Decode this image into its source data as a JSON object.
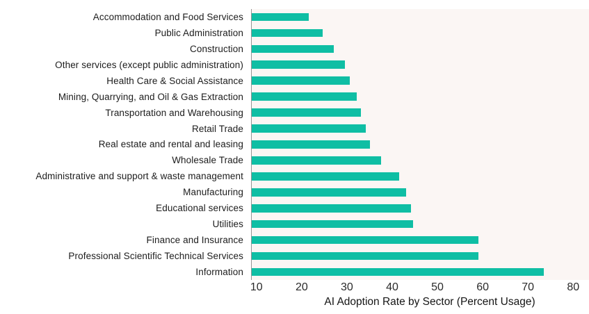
{
  "chart_data": {
    "type": "bar",
    "orientation": "horizontal",
    "title": "",
    "xlabel": "AI Adoption Rate by Sector (Percent Usage)",
    "ylabel": "",
    "categories": [
      "Accommodation and Food Services",
      "Public Administration",
      "Construction",
      "Other services (except public administration)",
      "Health Care & Social Assistance",
      "Mining, Quarrying, and Oil & Gas Extraction",
      "Transportation and Warehousing",
      "Retail Trade",
      "Real estate and rental and leasing",
      "Wholesale Trade",
      "Administrative and support & waste management",
      "Manufacturing",
      "Educational services",
      "Utilities",
      "Finance and Insurance",
      "Professional Scientific Technical Services",
      "Information"
    ],
    "values": [
      21.5,
      24.5,
      27,
      29.5,
      30.5,
      32,
      33,
      34,
      35,
      37.5,
      41.5,
      43,
      44,
      44.5,
      59,
      59,
      73.5
    ],
    "x_ticks": [
      10,
      20,
      30,
      40,
      50,
      60,
      70,
      80
    ],
    "xlim": [
      8.8,
      83.5
    ],
    "grid": false,
    "legend": "none",
    "colors": {
      "bar": "#0FBEA4",
      "plot_background": "#FBF6F4",
      "figure_background": "#FFFFFF",
      "axis_line": "#949494",
      "label_text": "#1C1C1C",
      "tick_text": "#2A2A2A",
      "axis_title_text": "#141414"
    }
  }
}
